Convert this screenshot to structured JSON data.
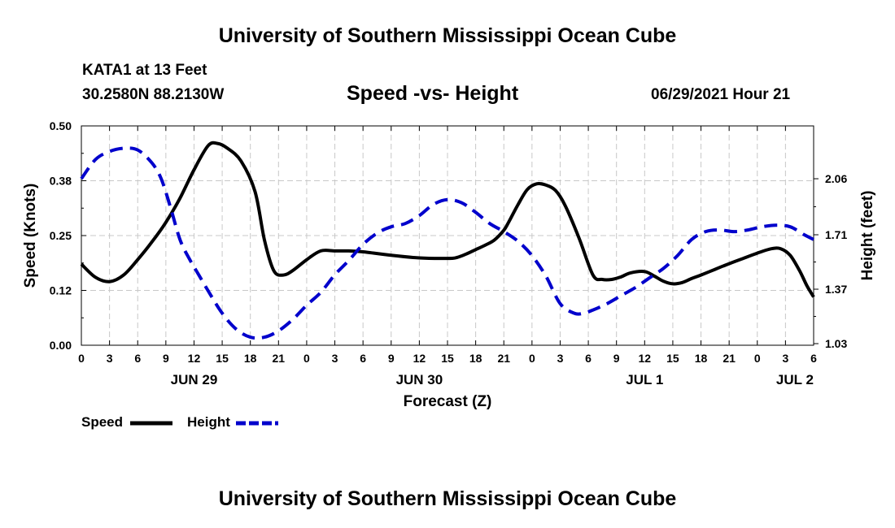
{
  "header": {
    "title_top": "University of Southern Mississippi Ocean Cube",
    "station": "KATA1 at 13 Feet",
    "coordinates": "30.2580N  88.2130W",
    "subtitle": "Speed -vs- Height",
    "datetime": "06/29/2021 Hour 21",
    "title_bottom": "University of Southern Mississippi Ocean Cube"
  },
  "legend": {
    "speed_label": "Speed",
    "height_label": "Height"
  },
  "colors": {
    "speed": "#000000",
    "height": "#0000cc",
    "grid": "#c8c8c8"
  },
  "chart_data": {
    "type": "line",
    "title": "Speed -vs- Height",
    "xlabel": "Forecast (Z)",
    "ylabel": "Speed (Knots)",
    "y2label": "Height (feet)",
    "x_hours_range": [
      0,
      78
    ],
    "ylim": [
      0,
      0.5
    ],
    "y2lim": [
      1.02,
      2.39
    ],
    "grid": true,
    "legend_position": "bottom-left",
    "x_tick_hours": [
      0,
      3,
      6,
      9,
      12,
      15,
      18,
      21,
      24,
      27,
      30,
      33,
      36,
      39,
      42,
      45,
      48,
      51,
      54,
      57,
      60,
      63,
      66,
      69,
      72,
      75,
      78
    ],
    "x_tick_labels": [
      "0",
      "3",
      "6",
      "9",
      "12",
      "15",
      "18",
      "21",
      "0",
      "3",
      "6",
      "9",
      "12",
      "15",
      "18",
      "21",
      "0",
      "3",
      "6",
      "9",
      "12",
      "15",
      "18",
      "21",
      "0",
      "3",
      "6"
    ],
    "date_labels": [
      {
        "text": "JUN 29",
        "hour": 12
      },
      {
        "text": "JUN 30",
        "hour": 36
      },
      {
        "text": "JUL 1",
        "hour": 60
      },
      {
        "text": "JUL 2",
        "hour": 76
      }
    ],
    "y_ticks": [
      0.0,
      0.125,
      0.25,
      0.375,
      0.5
    ],
    "y_tick_labels": [
      "0.00",
      "0.12",
      "0.25",
      "0.38",
      "0.50"
    ],
    "y2_ticks": [
      1.03,
      1.37,
      1.71,
      2.06
    ],
    "y2_tick_labels": [
      "1.03",
      "1.37",
      "1.71",
      "2.06"
    ],
    "series": [
      {
        "name": "Speed",
        "axis": "left",
        "style": "solid",
        "x": [
          0,
          1.5,
          3,
          4.5,
          6,
          7.5,
          9,
          10.5,
          12,
          13.5,
          14.5,
          15.5,
          17,
          18.5,
          19.5,
          20.5,
          21.5,
          22.5,
          24,
          25.5,
          27,
          28.5,
          30,
          33,
          36,
          39,
          40,
          41,
          42,
          43,
          44,
          45,
          45.5,
          46.5,
          47.5,
          48.5,
          49.5,
          50.5,
          51.5,
          53,
          54.5,
          55.5,
          56.5,
          57.5,
          58.5,
          60,
          61,
          62,
          63,
          64,
          65,
          66,
          67.5,
          69,
          70.5,
          72,
          73.5,
          74.5,
          75.5,
          76.5,
          77.3,
          78
        ],
        "values": [
          0.185,
          0.155,
          0.145,
          0.16,
          0.195,
          0.235,
          0.28,
          0.335,
          0.4,
          0.455,
          0.46,
          0.45,
          0.42,
          0.35,
          0.24,
          0.17,
          0.16,
          0.17,
          0.195,
          0.215,
          0.215,
          0.215,
          0.213,
          0.205,
          0.199,
          0.198,
          0.2,
          0.208,
          0.218,
          0.228,
          0.24,
          0.262,
          0.28,
          0.32,
          0.355,
          0.368,
          0.365,
          0.353,
          0.32,
          0.245,
          0.16,
          0.15,
          0.15,
          0.156,
          0.165,
          0.168,
          0.158,
          0.146,
          0.14,
          0.143,
          0.152,
          0.16,
          0.173,
          0.186,
          0.198,
          0.21,
          0.22,
          0.22,
          0.205,
          0.17,
          0.135,
          0.11
        ]
      },
      {
        "name": "Height",
        "axis": "right",
        "style": "dashed",
        "x": [
          0,
          1.5,
          3,
          4.5,
          6,
          7.5,
          8.5,
          9.5,
          10.5,
          11.5,
          12.5,
          13.5,
          15,
          16.5,
          18,
          19.5,
          21,
          22.5,
          24,
          25.5,
          27,
          28.5,
          30,
          31.5,
          33,
          34.5,
          36,
          37.5,
          39,
          40.5,
          42,
          43.5,
          45,
          46.5,
          48,
          49.5,
          51,
          52.5,
          53.5,
          54.5,
          56,
          57.5,
          59,
          60.5,
          62,
          63.5,
          65,
          66.5,
          68,
          69.5,
          71,
          72.5,
          74,
          75.5,
          77,
          78
        ],
        "values": [
          2.06,
          2.18,
          2.23,
          2.25,
          2.24,
          2.16,
          2.06,
          1.88,
          1.68,
          1.56,
          1.46,
          1.36,
          1.22,
          1.12,
          1.07,
          1.07,
          1.11,
          1.18,
          1.27,
          1.35,
          1.46,
          1.55,
          1.65,
          1.72,
          1.76,
          1.78,
          1.83,
          1.9,
          1.93,
          1.91,
          1.85,
          1.78,
          1.73,
          1.67,
          1.58,
          1.45,
          1.28,
          1.22,
          1.22,
          1.24,
          1.28,
          1.33,
          1.38,
          1.44,
          1.5,
          1.58,
          1.68,
          1.73,
          1.74,
          1.73,
          1.74,
          1.76,
          1.77,
          1.76,
          1.71,
          1.68
        ]
      }
    ]
  }
}
